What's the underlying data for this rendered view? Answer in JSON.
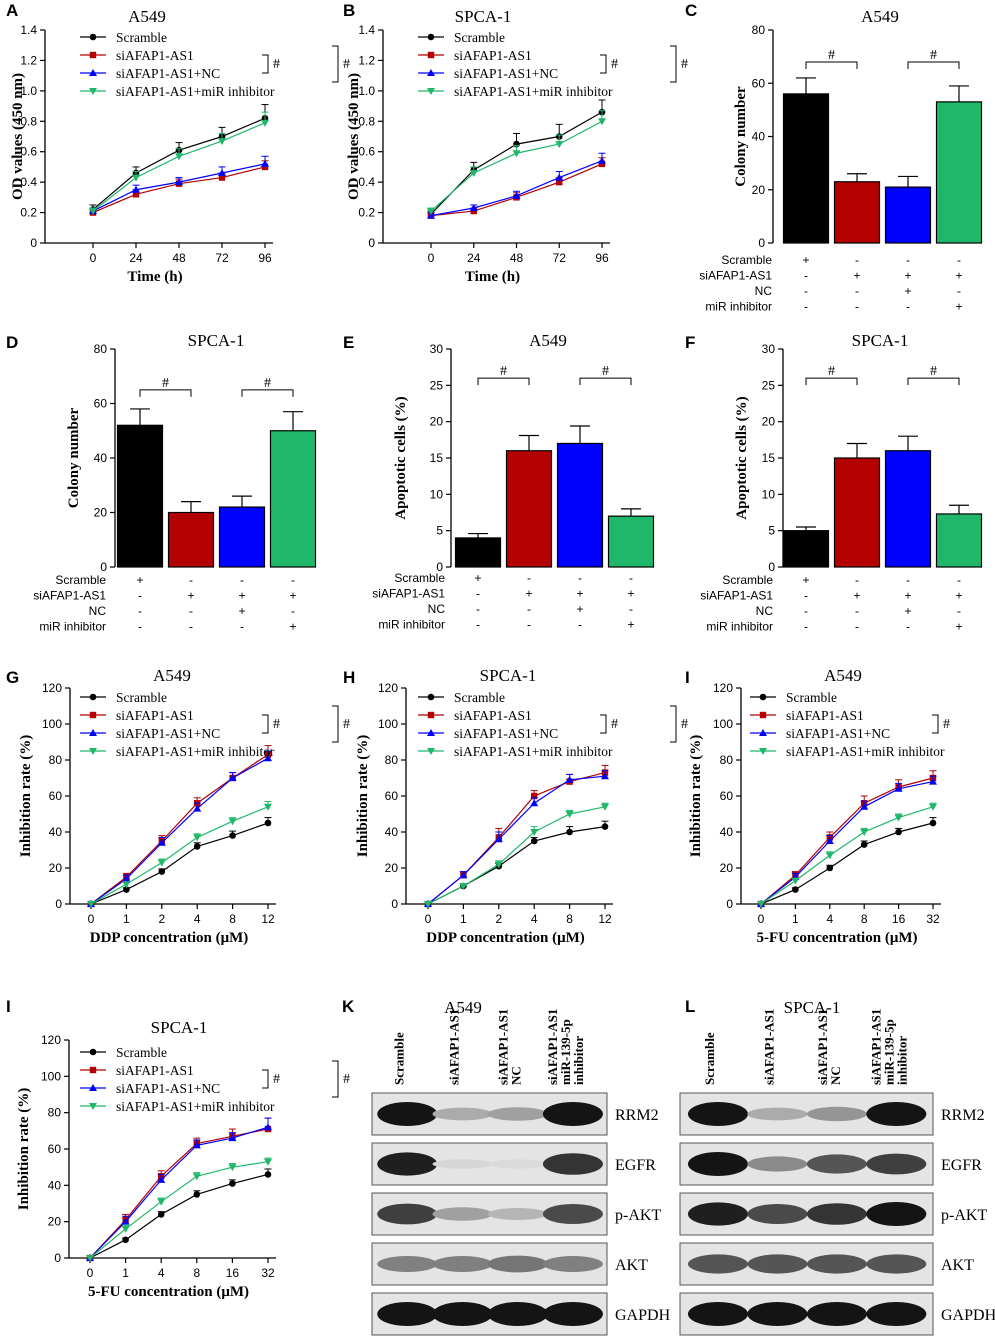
{
  "colors": {
    "scramble": "#000000",
    "siafap1": "#b40000",
    "nc": "#0000ff",
    "mir": "#1fb86a"
  },
  "sig_symbol": "#",
  "chart_data": [
    {
      "id": "A",
      "panel": "A",
      "type": "line",
      "title": "A549",
      "xlabel": "Time (h)",
      "ylabel": "OD values (450 nm)",
      "categories": [
        "0",
        "24",
        "48",
        "72",
        "96"
      ],
      "ylim": [
        0,
        1.4
      ],
      "yticks": [
        "0",
        "0.2",
        "0.4",
        "0.6",
        "0.8",
        "1.0",
        "1.2",
        "1.4"
      ],
      "series": [
        {
          "name": "Scramble",
          "values": [
            0.22,
            0.46,
            0.61,
            0.7,
            0.82
          ],
          "errors": [
            0.03,
            0.04,
            0.05,
            0.06,
            0.09
          ]
        },
        {
          "name": "siAFAP1-AS1",
          "values": [
            0.2,
            0.32,
            0.39,
            0.43,
            0.5
          ],
          "errors": [
            0.02,
            0.03,
            0.03,
            0.03,
            0.04
          ]
        },
        {
          "name": "siAFAP1-AS1+NC",
          "values": [
            0.21,
            0.35,
            0.4,
            0.46,
            0.52
          ],
          "errors": [
            0.02,
            0.03,
            0.03,
            0.04,
            0.05
          ]
        },
        {
          "name": "siAFAP1-AS1+miR inhibitor",
          "values": [
            0.21,
            0.43,
            0.57,
            0.67,
            0.79
          ],
          "errors": [
            0.02,
            0.04,
            0.05,
            0.05,
            0.07
          ]
        }
      ]
    },
    {
      "id": "B",
      "panel": "B",
      "type": "line",
      "title": "SPCA-1",
      "xlabel": "Time (h)",
      "ylabel": "OD values (450 nm)",
      "categories": [
        "0",
        "24",
        "48",
        "72",
        "96"
      ],
      "ylim": [
        0,
        1.4
      ],
      "yticks": [
        "0",
        "0.2",
        "0.4",
        "0.6",
        "0.8",
        "1.0",
        "1.2",
        "1.4"
      ],
      "series": [
        {
          "name": "Scramble",
          "values": [
            0.19,
            0.48,
            0.65,
            0.7,
            0.86
          ],
          "errors": [
            0.02,
            0.05,
            0.07,
            0.08,
            0.08
          ]
        },
        {
          "name": "siAFAP1-AS1",
          "values": [
            0.18,
            0.21,
            0.3,
            0.4,
            0.52
          ],
          "errors": [
            0.02,
            0.02,
            0.03,
            0.03,
            0.04
          ]
        },
        {
          "name": "siAFAP1-AS1+NC",
          "values": [
            0.18,
            0.23,
            0.31,
            0.43,
            0.54
          ],
          "errors": [
            0.02,
            0.02,
            0.03,
            0.04,
            0.05
          ]
        },
        {
          "name": "siAFAP1-AS1+miR inhibitor",
          "values": [
            0.21,
            0.46,
            0.59,
            0.65,
            0.8
          ],
          "errors": [
            0.02,
            0.04,
            0.05,
            0.06,
            0.07
          ]
        }
      ]
    },
    {
      "id": "C",
      "panel": "C",
      "type": "bar",
      "title": "A549",
      "ylabel": "Colony number",
      "ylim": [
        0,
        80
      ],
      "yticks": [
        "0",
        "20",
        "40",
        "60",
        "80"
      ],
      "categories": [
        "Scramble",
        "siAFAP1-AS1",
        "siAFAP1-AS1+NC",
        "siAFAP1-AS1+miR inhibitor"
      ],
      "values": [
        56,
        23,
        21,
        53
      ],
      "errors": [
        6,
        3,
        4,
        6
      ],
      "brackets": [
        [
          0,
          1,
          68
        ],
        [
          2,
          3,
          68
        ]
      ],
      "table_labels": [
        "Scramble",
        "siAFAP1-AS1",
        "NC",
        "miR inhibitor"
      ],
      "table": [
        [
          "+",
          "-",
          "-",
          "-"
        ],
        [
          "-",
          "+",
          "+",
          "+"
        ],
        [
          "-",
          "-",
          "+",
          "-"
        ],
        [
          "-",
          "-",
          "-",
          "+"
        ]
      ]
    },
    {
      "id": "D",
      "panel": "D",
      "type": "bar",
      "title": "SPCA-1",
      "ylabel": "Colony number",
      "ylim": [
        0,
        80
      ],
      "yticks": [
        "0",
        "20",
        "40",
        "60",
        "80"
      ],
      "categories": [
        "Scramble",
        "siAFAP1-AS1",
        "siAFAP1-AS1+NC",
        "siAFAP1-AS1+miR inhibitor"
      ],
      "values": [
        52,
        20,
        22,
        50
      ],
      "errors": [
        6,
        4,
        4,
        7
      ],
      "brackets": [
        [
          0,
          1,
          65
        ],
        [
          2,
          3,
          65
        ]
      ],
      "table_labels": [
        "Scramble",
        "siAFAP1-AS1",
        "NC",
        "miR inhibitor"
      ],
      "table": [
        [
          "+",
          "-",
          "-",
          "-"
        ],
        [
          "-",
          "+",
          "+",
          "+"
        ],
        [
          "-",
          "-",
          "+",
          "-"
        ],
        [
          "-",
          "-",
          "-",
          "+"
        ]
      ]
    },
    {
      "id": "E",
      "panel": "E",
      "type": "bar",
      "title": "A549",
      "ylabel": "Apoptotic cells (%)",
      "ylim": [
        0,
        30
      ],
      "yticks": [
        "0",
        "5",
        "10",
        "15",
        "20",
        "25",
        "30"
      ],
      "categories": [
        "Scramble",
        "siAFAP1-AS1",
        "siAFAP1-AS1+NC",
        "siAFAP1-AS1+miR inhibitor"
      ],
      "values": [
        4,
        16,
        17,
        7
      ],
      "errors": [
        0.6,
        2.1,
        2.4,
        1.0
      ],
      "brackets": [
        [
          0,
          1,
          26
        ],
        [
          2,
          3,
          26
        ]
      ],
      "table_labels": [
        "Scramble",
        "siAFAP1-AS1",
        "NC",
        "miR inhibitor"
      ],
      "table": [
        [
          "+",
          "-",
          "-",
          "-"
        ],
        [
          "-",
          "+",
          "+",
          "+"
        ],
        [
          "-",
          "-",
          "+",
          "-"
        ],
        [
          "-",
          "-",
          "-",
          "+"
        ]
      ]
    },
    {
      "id": "F",
      "panel": "F",
      "type": "bar",
      "title": "SPCA-1",
      "ylabel": "Apoptotic cells (%)",
      "ylim": [
        0,
        30
      ],
      "yticks": [
        "0",
        "5",
        "10",
        "15",
        "20",
        "25",
        "30"
      ],
      "categories": [
        "Scramble",
        "siAFAP1-AS1",
        "siAFAP1-AS1+NC",
        "siAFAP1-AS1+miR inhibitor"
      ],
      "values": [
        5,
        15,
        16,
        7.3
      ],
      "errors": [
        0.5,
        2.0,
        2.0,
        1.2
      ],
      "brackets": [
        [
          0,
          1,
          26
        ],
        [
          2,
          3,
          26
        ]
      ],
      "table_labels": [
        "Scramble",
        "siAFAP1-AS1",
        "NC",
        "miR inhibitor"
      ],
      "table": [
        [
          "+",
          "-",
          "-",
          "-"
        ],
        [
          "-",
          "+",
          "+",
          "+"
        ],
        [
          "-",
          "-",
          "+",
          "-"
        ],
        [
          "-",
          "-",
          "-",
          "+"
        ]
      ]
    },
    {
      "id": "G",
      "panel": "G",
      "type": "line",
      "title": "A549",
      "xlabel": "DDP concentration (μM)",
      "ylabel": "Inhibition rate (%)",
      "categories": [
        "0",
        "1",
        "2",
        "4",
        "8",
        "12"
      ],
      "ylim": [
        0,
        120
      ],
      "yticks": [
        "0",
        "20",
        "40",
        "60",
        "80",
        "100",
        "120"
      ],
      "series": [
        {
          "name": "Scramble",
          "values": [
            0,
            8,
            18,
            32,
            38,
            45
          ],
          "errors": [
            0,
            1,
            1.5,
            2,
            2.5,
            3
          ]
        },
        {
          "name": "siAFAP1-AS1",
          "values": [
            0,
            15,
            35,
            56,
            70,
            83
          ],
          "errors": [
            0,
            2,
            3,
            3,
            3,
            5
          ]
        },
        {
          "name": "siAFAP1-AS1+NC",
          "values": [
            0,
            14,
            34,
            53,
            70,
            81
          ],
          "errors": [
            0,
            2,
            3,
            3,
            3,
            4
          ]
        },
        {
          "name": "siAFAP1-AS1+miR inhibitor",
          "values": [
            0,
            11,
            23,
            37,
            46,
            54
          ],
          "errors": [
            0,
            1,
            2,
            2,
            2,
            3
          ]
        }
      ]
    },
    {
      "id": "H",
      "panel": "H",
      "type": "line",
      "title": "SPCA-1",
      "xlabel": "DDP concentration (μM)",
      "ylabel": "Inhibition rate (%)",
      "categories": [
        "0",
        "1",
        "2",
        "4",
        "8",
        "12"
      ],
      "ylim": [
        0,
        120
      ],
      "yticks": [
        "0",
        "20",
        "40",
        "60",
        "80",
        "100",
        "120"
      ],
      "series": [
        {
          "name": "Scramble",
          "values": [
            0,
            10,
            21,
            35,
            40,
            43
          ],
          "errors": [
            0,
            1,
            1.5,
            2,
            3,
            3
          ]
        },
        {
          "name": "siAFAP1-AS1",
          "values": [
            0,
            16,
            37,
            60,
            68,
            73
          ],
          "errors": [
            0,
            2,
            5,
            3,
            4,
            4
          ]
        },
        {
          "name": "siAFAP1-AS1+NC",
          "values": [
            0,
            16,
            36,
            56,
            69,
            71
          ],
          "errors": [
            0,
            2,
            4,
            3,
            3,
            3
          ]
        },
        {
          "name": "siAFAP1-AS1+miR inhibitor",
          "values": [
            0,
            10,
            22,
            40,
            50,
            54
          ],
          "errors": [
            0,
            1,
            2,
            3,
            2,
            2
          ]
        }
      ]
    },
    {
      "id": "I1",
      "panel": "I",
      "type": "line",
      "title": "A549",
      "xlabel": "5-FU concentration (μM)",
      "ylabel": "Inhibition rate (%)",
      "categories": [
        "0",
        "1",
        "4",
        "8",
        "16",
        "32"
      ],
      "ylim": [
        0,
        120
      ],
      "yticks": [
        "0",
        "20",
        "40",
        "60",
        "80",
        "100",
        "120"
      ],
      "series": [
        {
          "name": "Scramble",
          "values": [
            0,
            8,
            20,
            33,
            40,
            45
          ],
          "errors": [
            0,
            1,
            1.5,
            2,
            2,
            3
          ]
        },
        {
          "name": "siAFAP1-AS1",
          "values": [
            0,
            16,
            37,
            56,
            65,
            70
          ],
          "errors": [
            0,
            2,
            3,
            4,
            4,
            4
          ]
        },
        {
          "name": "siAFAP1-AS1+NC",
          "values": [
            0,
            15,
            35,
            54,
            64,
            68
          ],
          "errors": [
            0,
            2,
            3,
            3,
            3,
            3
          ]
        },
        {
          "name": "siAFAP1-AS1+miR inhibitor",
          "values": [
            0,
            13,
            27,
            40,
            48,
            54
          ],
          "errors": [
            0,
            1,
            2,
            2,
            2,
            2
          ]
        }
      ]
    },
    {
      "id": "I2",
      "panel": "I",
      "type": "line",
      "title": "SPCA-1",
      "xlabel": "5-FU concentration (μM)",
      "ylabel": "Inhibition rate (%)",
      "categories": [
        "0",
        "1",
        "4",
        "8",
        "16",
        "32"
      ],
      "ylim": [
        0,
        120
      ],
      "yticks": [
        "0",
        "20",
        "40",
        "60",
        "80",
        "100",
        "120"
      ],
      "series": [
        {
          "name": "Scramble",
          "values": [
            0,
            10,
            24,
            35,
            41,
            46
          ],
          "errors": [
            0,
            1,
            1.5,
            2,
            2,
            3
          ]
        },
        {
          "name": "siAFAP1-AS1",
          "values": [
            0,
            21,
            45,
            63,
            67,
            71
          ],
          "errors": [
            0,
            3,
            3,
            3,
            4,
            6
          ]
        },
        {
          "name": "siAFAP1-AS1+NC",
          "values": [
            0,
            20,
            43,
            62,
            66,
            72
          ],
          "errors": [
            0,
            3,
            3,
            3,
            3,
            5
          ]
        },
        {
          "name": "siAFAP1-AS1+miR inhibitor",
          "values": [
            0,
            16,
            31,
            45,
            50,
            53
          ],
          "errors": [
            0,
            2,
            2,
            2,
            2,
            2
          ]
        }
      ]
    }
  ],
  "blots": [
    {
      "panel": "K",
      "title": "A549",
      "lanes": [
        "Scramble",
        "siAFAP1-AS1",
        "siAFAP1-AS1\nNC",
        "siAFAP1-AS1\nmiR-139-5p\ninhibitor"
      ],
      "bands": [
        "RRM2",
        "EGFR",
        "p-AKT",
        "AKT",
        "GAPDH"
      ],
      "intensity": [
        [
          1.0,
          0.3,
          0.35,
          1.0
        ],
        [
          0.95,
          0.1,
          0.08,
          0.85
        ],
        [
          0.8,
          0.35,
          0.25,
          0.75
        ],
        [
          0.5,
          0.5,
          0.55,
          0.5
        ],
        [
          1.0,
          1.0,
          1.0,
          1.0
        ]
      ]
    },
    {
      "panel": "L",
      "title": "SPCA-1",
      "lanes": [
        "Scramble",
        "siAFAP1-AS1",
        "siAFAP1-AS1\nNC",
        "siAFAP1-AS1\nmiR-139-5p\ninhibitor"
      ],
      "bands": [
        "RRM2",
        "EGFR",
        "p-AKT",
        "AKT",
        "GAPDH"
      ],
      "intensity": [
        [
          1.0,
          0.3,
          0.4,
          1.0
        ],
        [
          1.0,
          0.45,
          0.7,
          0.8
        ],
        [
          0.95,
          0.75,
          0.85,
          1.0
        ],
        [
          0.7,
          0.7,
          0.7,
          0.7
        ],
        [
          1.0,
          1.0,
          1.0,
          1.0
        ]
      ]
    }
  ]
}
